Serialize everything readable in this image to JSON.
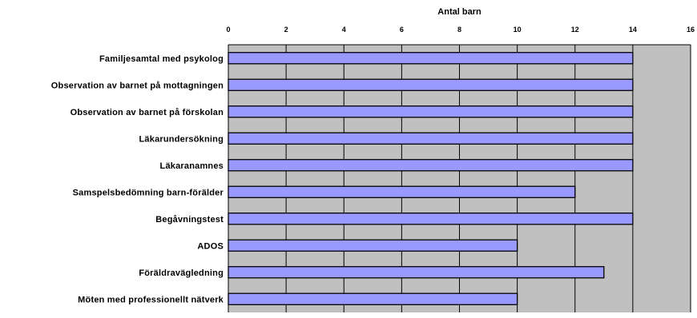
{
  "chart_data": {
    "type": "bar",
    "orientation": "horizontal",
    "title": "",
    "xlabel": "Antal barn",
    "ylabel": "",
    "xlim": [
      0,
      16
    ],
    "xticks": [
      0,
      2,
      4,
      6,
      8,
      10,
      12,
      14,
      16
    ],
    "x_axis_position": "top",
    "grid": true,
    "legend": "none",
    "categories": [
      "Familjesamtal med psykolog",
      "Observation av barnet på mottagningen",
      "Observation av barnet på förskolan",
      "Läkarundersökning",
      "Läkaranamnes",
      "Samspelsbedömning barn-förälder",
      "Begåvningstest",
      "ADOS",
      "Föräldravägledning",
      "Möten med professionellt nätverk"
    ],
    "values": [
      14,
      14,
      14,
      14,
      14,
      12,
      14,
      10,
      13,
      10
    ],
    "colors": {
      "bar_fill": "#9999ff",
      "bar_stroke": "#000000",
      "plot_background": "#c0c0c0",
      "gridline": "#000000"
    }
  }
}
